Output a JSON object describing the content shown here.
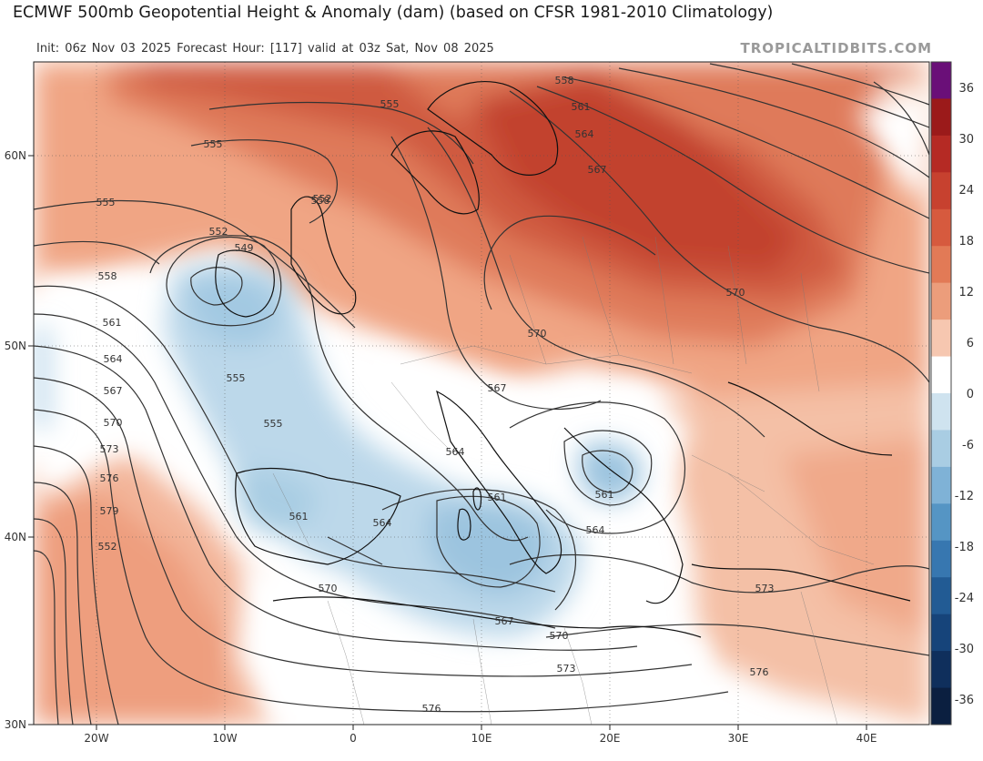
{
  "header": {
    "title": "ECMWF 500mb Geopotential Height & Anomaly (dam) (based on CFSR 1981-2010 Climatology)",
    "subtitle": "Init: 06z Nov 03 2025   Forecast Hour: [117]   valid at 03z Sat, Nov 08 2025",
    "watermark": "TROPICALTIDBITS.COM"
  },
  "map": {
    "lon_labels": [
      "20W",
      "10W",
      "0",
      "10E",
      "20E",
      "30E",
      "40E"
    ],
    "lat_labels": [
      "60N",
      "50N",
      "40N",
      "30N"
    ],
    "contours": [
      {
        "label": "558",
        "value": 558
      },
      {
        "label": "561",
        "value": 561
      },
      {
        "label": "564",
        "value": 564
      },
      {
        "label": "567",
        "value": 567
      },
      {
        "label": "555",
        "value": 555
      },
      {
        "label": "555",
        "value": 555
      },
      {
        "label": "552",
        "value": 552
      },
      {
        "label": "552",
        "value": 552
      },
      {
        "label": "549",
        "value": 549
      },
      {
        "label": "555",
        "value": 555
      },
      {
        "label": "555",
        "value": 555
      },
      {
        "label": "558",
        "value": 558
      },
      {
        "label": "561",
        "value": 561
      },
      {
        "label": "564",
        "value": 564
      },
      {
        "label": "567",
        "value": 567
      },
      {
        "label": "570",
        "value": 570
      },
      {
        "label": "573",
        "value": 573
      },
      {
        "label": "576",
        "value": 576
      },
      {
        "label": "579",
        "value": 579
      },
      {
        "label": "552",
        "value": 552
      },
      {
        "label": "555",
        "value": 555
      },
      {
        "label": "558",
        "value": 558
      },
      {
        "label": "561",
        "value": 561
      },
      {
        "label": "564",
        "value": 564
      },
      {
        "label": "561",
        "value": 561
      },
      {
        "label": "564",
        "value": 564
      },
      {
        "label": "567",
        "value": 567
      },
      {
        "label": "564",
        "value": 564
      },
      {
        "label": "570",
        "value": 570
      },
      {
        "label": "570",
        "value": 570
      },
      {
        "label": "570",
        "value": 570
      },
      {
        "label": "570",
        "value": 570
      },
      {
        "label": "567",
        "value": 567
      },
      {
        "label": "573",
        "value": 573
      },
      {
        "label": "576",
        "value": 576
      },
      {
        "label": "573",
        "value": 573
      },
      {
        "label": "576",
        "value": 576
      },
      {
        "label": "561",
        "value": 561
      }
    ]
  },
  "colorbar": {
    "labels": [
      "36",
      "30",
      "24",
      "18",
      "12",
      "6",
      "0",
      "-6",
      "-12",
      "-18",
      "-24",
      "-30",
      "-36"
    ],
    "colors": [
      "#6a0f78",
      "#9b1a1a",
      "#b52a24",
      "#c7412f",
      "#d65a3e",
      "#e27a56",
      "#ec9d7b",
      "#f6c7b0",
      "#ffffff",
      "#cfe3ef",
      "#a9cde3",
      "#7fb2d6",
      "#5595c4",
      "#3777b0",
      "#225b94",
      "#16447a",
      "#0f2f5c",
      "#0b1f40"
    ]
  }
}
